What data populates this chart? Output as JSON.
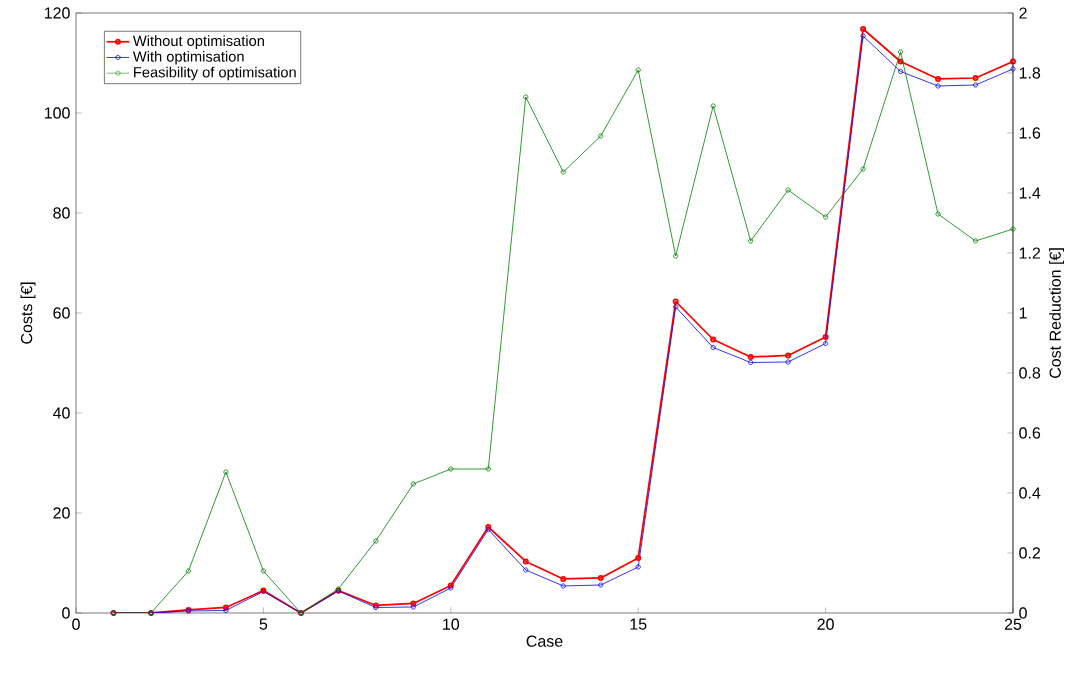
{
  "chart_data": {
    "type": "line",
    "xlabel": "Case",
    "ylabel": "Costs [€]",
    "y2label": "Cost Reduction [€]",
    "x": [
      1,
      2,
      3,
      4,
      5,
      6,
      7,
      8,
      9,
      10,
      11,
      12,
      13,
      14,
      15,
      16,
      17,
      18,
      19,
      20,
      21,
      22,
      23,
      24,
      25
    ],
    "series": [
      {
        "name": "Without optimisation",
        "color": "#ff0000",
        "values": [
          0,
          0,
          0.6,
          1.1,
          4.5,
          0,
          4.5,
          1.5,
          1.9,
          5.5,
          17.2,
          10.3,
          6.8,
          7.0,
          11.0,
          62.3,
          54.7,
          51.2,
          51.5,
          55.2,
          116.8,
          110.3,
          106.8,
          107.0,
          110.3
        ]
      },
      {
        "name": "With optimisation",
        "color": "#0000ff",
        "values": [
          0,
          0,
          0.4,
          0.5,
          4.3,
          0,
          4.4,
          1.1,
          1.2,
          5.0,
          16.7,
          8.6,
          5.4,
          5.6,
          9.2,
          61.2,
          53.1,
          50.1,
          50.2,
          53.9,
          115.4,
          108.3,
          105.4,
          105.6,
          108.8
        ]
      },
      {
        "name": "Feasibility of optimisation",
        "color": "#008000",
        "axis": "y2",
        "values": [
          0,
          0,
          0.14,
          0.47,
          0.14,
          0,
          0.08,
          0.24,
          0.43,
          0.48,
          0.48,
          1.72,
          1.47,
          1.59,
          1.81,
          1.19,
          1.69,
          1.24,
          1.41,
          1.32,
          1.48,
          1.87,
          1.33,
          1.24,
          1.28
        ]
      }
    ],
    "xlim": [
      0,
      25
    ],
    "xticks": [
      0,
      5,
      10,
      15,
      20,
      25
    ],
    "ylim": [
      0,
      120
    ],
    "yticks": [
      0,
      20,
      40,
      60,
      80,
      100,
      120
    ],
    "y2lim": [
      0,
      2
    ],
    "y2ticks": [
      0,
      0.2,
      0.4,
      0.6,
      0.8,
      1,
      1.2,
      1.4,
      1.6,
      1.8,
      2
    ],
    "marker": "circle",
    "legend": "top left"
  }
}
